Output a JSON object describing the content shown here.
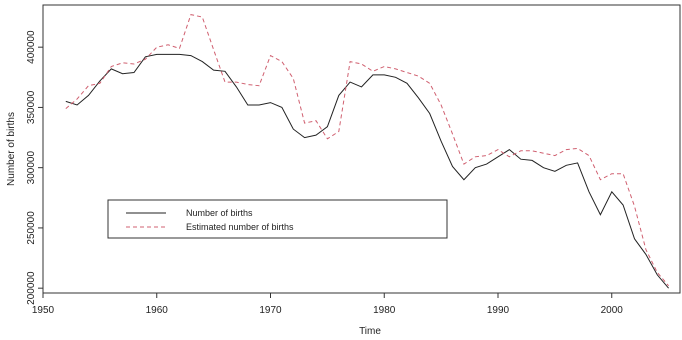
{
  "chart_data": {
    "type": "line",
    "title": "",
    "xlabel": "Time",
    "ylabel": "Number of births",
    "xlim": [
      1950,
      2006
    ],
    "ylim": [
      196000,
      435000
    ],
    "xticks": [
      1950,
      1960,
      1970,
      1980,
      1990,
      2000
    ],
    "yticks": [
      200000,
      250000,
      300000,
      350000,
      400000
    ],
    "legend_position": "center-left",
    "x": [
      1952,
      1953,
      1954,
      1955,
      1956,
      1957,
      1958,
      1959,
      1960,
      1961,
      1962,
      1963,
      1964,
      1965,
      1966,
      1967,
      1968,
      1969,
      1970,
      1971,
      1972,
      1973,
      1974,
      1975,
      1976,
      1977,
      1978,
      1979,
      1980,
      1981,
      1982,
      1983,
      1984,
      1985,
      1986,
      1987,
      1988,
      1989,
      1990,
      1991,
      1992,
      1993,
      1994,
      1995,
      1996,
      1997,
      1998,
      1999,
      2000,
      2001,
      2002,
      2003,
      2004,
      2005
    ],
    "series": [
      {
        "name": "Number of births",
        "color": "#222222",
        "dash": "solid",
        "values": [
          355000,
          352000,
          360000,
          372000,
          382000,
          378000,
          379000,
          392000,
          394000,
          394000,
          394000,
          393000,
          388000,
          381000,
          380000,
          367000,
          352000,
          352000,
          354000,
          350000,
          332000,
          325000,
          327000,
          334000,
          360000,
          371000,
          367000,
          377000,
          377000,
          375000,
          370000,
          358000,
          345000,
          322000,
          301000,
          290000,
          300000,
          303000,
          309000,
          315000,
          307000,
          306000,
          300000,
          297000,
          302000,
          304000,
          280000,
          261000,
          280000,
          269000,
          241000,
          228000,
          211000,
          200000
        ]
      },
      {
        "name": "Estimated number of births",
        "color": "#d06070",
        "dash": "dashed",
        "values": [
          349000,
          357000,
          368000,
          370000,
          384000,
          387000,
          386000,
          390000,
          400000,
          402000,
          399000,
          427000,
          425000,
          398000,
          371000,
          371000,
          369000,
          368000,
          393000,
          388000,
          374000,
          337000,
          339000,
          324000,
          330000,
          388000,
          386000,
          380000,
          384000,
          382000,
          379000,
          376000,
          370000,
          352000,
          328000,
          303000,
          309000,
          310000,
          315000,
          309000,
          314000,
          314000,
          312000,
          310000,
          315000,
          316000,
          310000,
          290000,
          295000,
          295000,
          268000,
          232000,
          213000,
          202000
        ]
      }
    ]
  }
}
